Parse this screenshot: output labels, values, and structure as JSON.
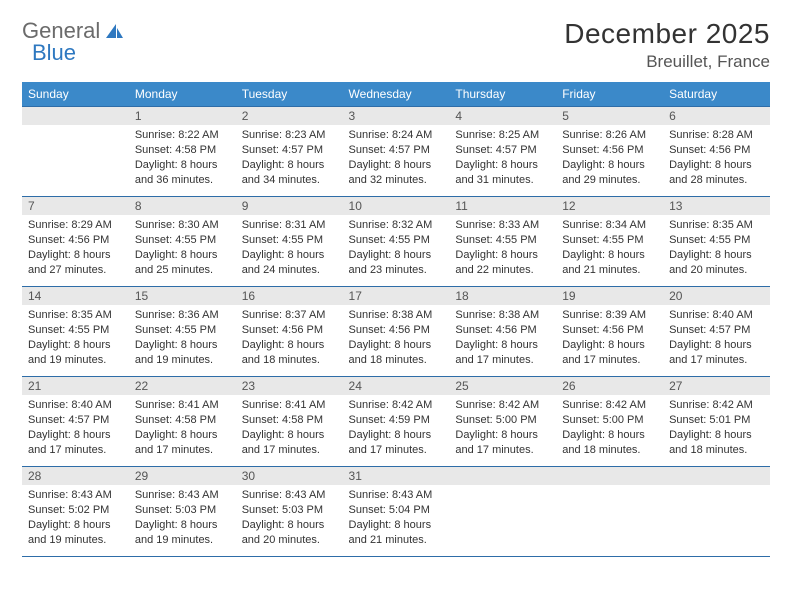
{
  "logo": {
    "text1": "General",
    "text2": "Blue"
  },
  "title": "December 2025",
  "location": "Breuillet, France",
  "columns": [
    "Sunday",
    "Monday",
    "Tuesday",
    "Wednesday",
    "Thursday",
    "Friday",
    "Saturday"
  ],
  "colors": {
    "header_bg": "#3b89c9",
    "header_text": "#ffffff",
    "rule": "#2e6da8",
    "daynum_bg": "#e8e8e8",
    "body_bg": "#ffffff",
    "logo_gray": "#6b6b6b",
    "logo_blue": "#2e78c0"
  },
  "weeks": [
    [
      null,
      {
        "n": "1",
        "sr": "8:22 AM",
        "ss": "4:58 PM",
        "dl": "8 hours and 36 minutes."
      },
      {
        "n": "2",
        "sr": "8:23 AM",
        "ss": "4:57 PM",
        "dl": "8 hours and 34 minutes."
      },
      {
        "n": "3",
        "sr": "8:24 AM",
        "ss": "4:57 PM",
        "dl": "8 hours and 32 minutes."
      },
      {
        "n": "4",
        "sr": "8:25 AM",
        "ss": "4:57 PM",
        "dl": "8 hours and 31 minutes."
      },
      {
        "n": "5",
        "sr": "8:26 AM",
        "ss": "4:56 PM",
        "dl": "8 hours and 29 minutes."
      },
      {
        "n": "6",
        "sr": "8:28 AM",
        "ss": "4:56 PM",
        "dl": "8 hours and 28 minutes."
      }
    ],
    [
      {
        "n": "7",
        "sr": "8:29 AM",
        "ss": "4:56 PM",
        "dl": "8 hours and 27 minutes."
      },
      {
        "n": "8",
        "sr": "8:30 AM",
        "ss": "4:55 PM",
        "dl": "8 hours and 25 minutes."
      },
      {
        "n": "9",
        "sr": "8:31 AM",
        "ss": "4:55 PM",
        "dl": "8 hours and 24 minutes."
      },
      {
        "n": "10",
        "sr": "8:32 AM",
        "ss": "4:55 PM",
        "dl": "8 hours and 23 minutes."
      },
      {
        "n": "11",
        "sr": "8:33 AM",
        "ss": "4:55 PM",
        "dl": "8 hours and 22 minutes."
      },
      {
        "n": "12",
        "sr": "8:34 AM",
        "ss": "4:55 PM",
        "dl": "8 hours and 21 minutes."
      },
      {
        "n": "13",
        "sr": "8:35 AM",
        "ss": "4:55 PM",
        "dl": "8 hours and 20 minutes."
      }
    ],
    [
      {
        "n": "14",
        "sr": "8:35 AM",
        "ss": "4:55 PM",
        "dl": "8 hours and 19 minutes."
      },
      {
        "n": "15",
        "sr": "8:36 AM",
        "ss": "4:55 PM",
        "dl": "8 hours and 19 minutes."
      },
      {
        "n": "16",
        "sr": "8:37 AM",
        "ss": "4:56 PM",
        "dl": "8 hours and 18 minutes."
      },
      {
        "n": "17",
        "sr": "8:38 AM",
        "ss": "4:56 PM",
        "dl": "8 hours and 18 minutes."
      },
      {
        "n": "18",
        "sr": "8:38 AM",
        "ss": "4:56 PM",
        "dl": "8 hours and 17 minutes."
      },
      {
        "n": "19",
        "sr": "8:39 AM",
        "ss": "4:56 PM",
        "dl": "8 hours and 17 minutes."
      },
      {
        "n": "20",
        "sr": "8:40 AM",
        "ss": "4:57 PM",
        "dl": "8 hours and 17 minutes."
      }
    ],
    [
      {
        "n": "21",
        "sr": "8:40 AM",
        "ss": "4:57 PM",
        "dl": "8 hours and 17 minutes."
      },
      {
        "n": "22",
        "sr": "8:41 AM",
        "ss": "4:58 PM",
        "dl": "8 hours and 17 minutes."
      },
      {
        "n": "23",
        "sr": "8:41 AM",
        "ss": "4:58 PM",
        "dl": "8 hours and 17 minutes."
      },
      {
        "n": "24",
        "sr": "8:42 AM",
        "ss": "4:59 PM",
        "dl": "8 hours and 17 minutes."
      },
      {
        "n": "25",
        "sr": "8:42 AM",
        "ss": "5:00 PM",
        "dl": "8 hours and 17 minutes."
      },
      {
        "n": "26",
        "sr": "8:42 AM",
        "ss": "5:00 PM",
        "dl": "8 hours and 18 minutes."
      },
      {
        "n": "27",
        "sr": "8:42 AM",
        "ss": "5:01 PM",
        "dl": "8 hours and 18 minutes."
      }
    ],
    [
      {
        "n": "28",
        "sr": "8:43 AM",
        "ss": "5:02 PM",
        "dl": "8 hours and 19 minutes."
      },
      {
        "n": "29",
        "sr": "8:43 AM",
        "ss": "5:03 PM",
        "dl": "8 hours and 19 minutes."
      },
      {
        "n": "30",
        "sr": "8:43 AM",
        "ss": "5:03 PM",
        "dl": "8 hours and 20 minutes."
      },
      {
        "n": "31",
        "sr": "8:43 AM",
        "ss": "5:04 PM",
        "dl": "8 hours and 21 minutes."
      },
      null,
      null,
      null
    ]
  ],
  "labels": {
    "sunrise": "Sunrise:",
    "sunset": "Sunset:",
    "daylight": "Daylight:"
  }
}
